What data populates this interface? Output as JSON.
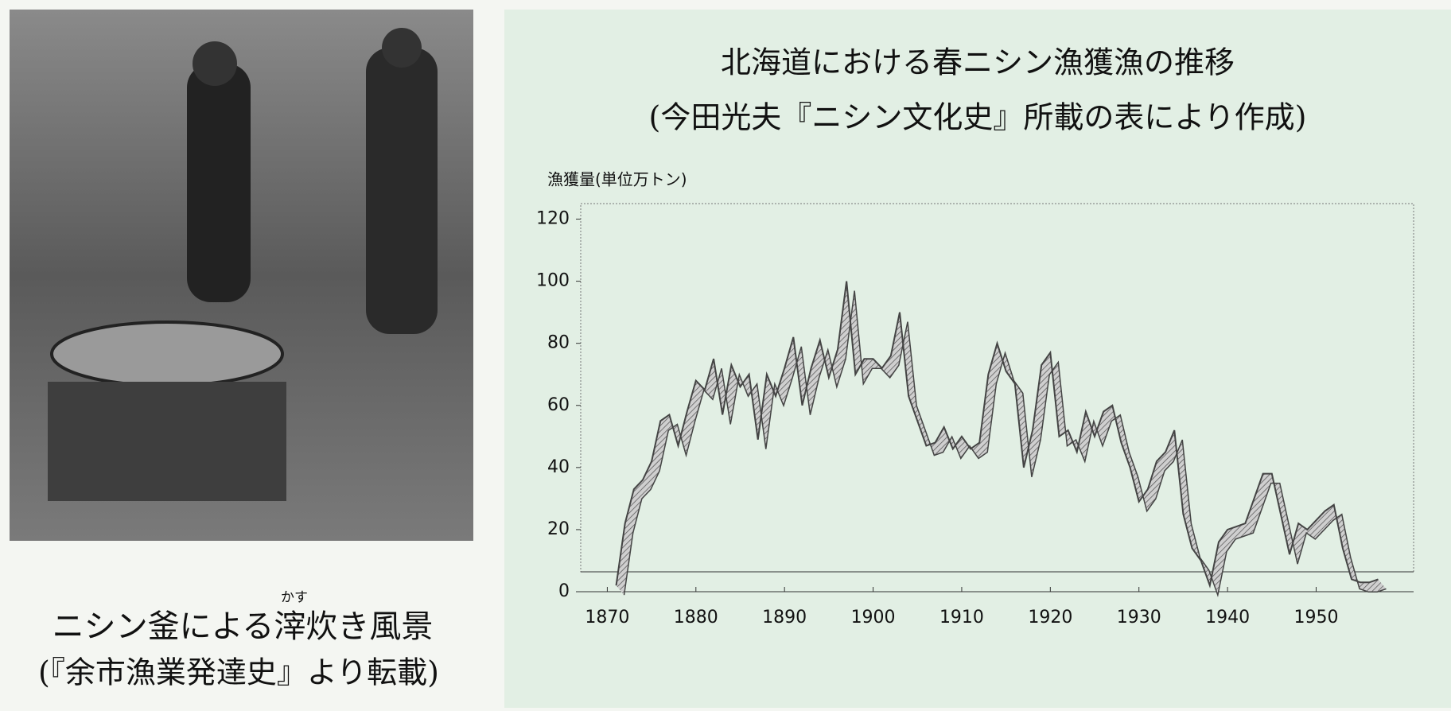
{
  "photo": {
    "caption": "ニシン釜による滓炊き風景",
    "ruby": "かす",
    "source": "(『余市漁業発達史』より転載)"
  },
  "chart_data": {
    "type": "line",
    "title": "北海道における春ニシン漁獲漁の推移",
    "subtitle": "(今田光夫『ニシン文化史』所載の表により作成)",
    "y_label": "漁獲量(単位万トン)",
    "x": [
      1871,
      1872,
      1873,
      1874,
      1875,
      1876,
      1877,
      1878,
      1879,
      1880,
      1881,
      1882,
      1883,
      1884,
      1885,
      1886,
      1887,
      1888,
      1889,
      1890,
      1891,
      1892,
      1893,
      1894,
      1895,
      1896,
      1897,
      1898,
      1899,
      1900,
      1901,
      1902,
      1903,
      1904,
      1905,
      1906,
      1907,
      1908,
      1909,
      1910,
      1911,
      1912,
      1913,
      1914,
      1915,
      1916,
      1917,
      1918,
      1919,
      1920,
      1921,
      1922,
      1923,
      1924,
      1925,
      1926,
      1927,
      1928,
      1929,
      1930,
      1931,
      1932,
      1933,
      1934,
      1935,
      1936,
      1937,
      1938,
      1939,
      1940,
      1941,
      1942,
      1943,
      1944,
      1945,
      1946,
      1947,
      1948,
      1949,
      1950,
      1951,
      1952,
      1953,
      1954,
      1955,
      1956,
      1957
    ],
    "series": [
      {
        "name": "漁獲量",
        "color": "#444444",
        "values": [
          2,
          22,
          33,
          36,
          42,
          55,
          57,
          47,
          58,
          68,
          65,
          75,
          57,
          73,
          66,
          70,
          49,
          70,
          63,
          72,
          82,
          60,
          72,
          81,
          69,
          78,
          100,
          70,
          75,
          75,
          72,
          76,
          90,
          63,
          55,
          47,
          48,
          53,
          46,
          50,
          46,
          48,
          70,
          80,
          71,
          67,
          40,
          52,
          73,
          77,
          50,
          52,
          45,
          58,
          50,
          58,
          60,
          48,
          40,
          29,
          33,
          42,
          45,
          52,
          25,
          14,
          10,
          2,
          16,
          20,
          21,
          22,
          30,
          38,
          38,
          25,
          12,
          22,
          20,
          23,
          26,
          28,
          14,
          4,
          3,
          3,
          4
        ]
      }
    ],
    "xlim": [
      1867,
      1961
    ],
    "xticks": [
      1870,
      1880,
      1890,
      1900,
      1910,
      1920,
      1930,
      1940,
      1950
    ],
    "ylim": [
      0,
      125
    ],
    "yticks": [
      0,
      20,
      40,
      60,
      80,
      100,
      120
    ],
    "grid": false
  }
}
